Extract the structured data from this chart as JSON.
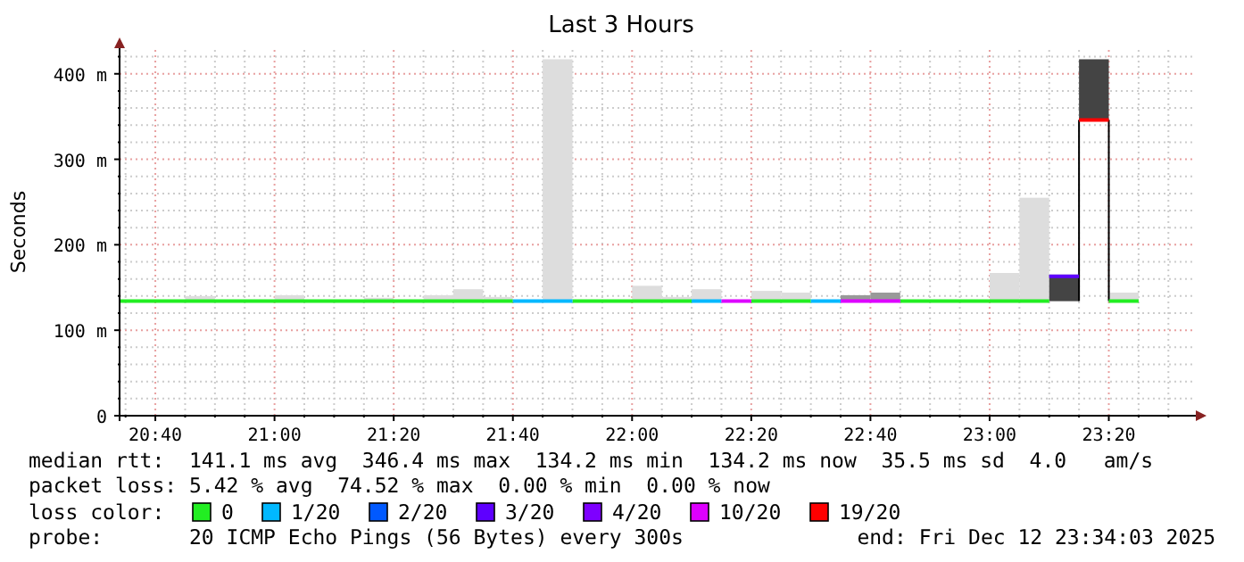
{
  "chart_data": {
    "type": "line",
    "title": "Last 3 Hours",
    "ylabel": "Seconds",
    "xlim": [
      "2025-12-12T20:34",
      "2025-12-12T23:34"
    ],
    "xticks": [
      {
        "value": "2025-12-12T20:35",
        "label": null
      },
      {
        "value": "2025-12-12T20:40",
        "label": "20:40"
      },
      {
        "value": "2025-12-12T20:45",
        "label": null
      },
      {
        "value": "2025-12-12T20:50",
        "label": null
      },
      {
        "value": "2025-12-12T20:55",
        "label": null
      },
      {
        "value": "2025-12-12T21:00",
        "label": "21:00"
      },
      {
        "value": "2025-12-12T21:05",
        "label": null
      },
      {
        "value": "2025-12-12T21:10",
        "label": null
      },
      {
        "value": "2025-12-12T21:15",
        "label": null
      },
      {
        "value": "2025-12-12T21:20",
        "label": "21:20"
      },
      {
        "value": "2025-12-12T21:25",
        "label": null
      },
      {
        "value": "2025-12-12T21:30",
        "label": null
      },
      {
        "value": "2025-12-12T21:35",
        "label": null
      },
      {
        "value": "2025-12-12T21:40",
        "label": "21:40"
      },
      {
        "value": "2025-12-12T21:45",
        "label": null
      },
      {
        "value": "2025-12-12T21:50",
        "label": null
      },
      {
        "value": "2025-12-12T21:55",
        "label": null
      },
      {
        "value": "2025-12-12T22:00",
        "label": "22:00"
      },
      {
        "value": "2025-12-12T22:05",
        "label": null
      },
      {
        "value": "2025-12-12T22:10",
        "label": null
      },
      {
        "value": "2025-12-12T22:15",
        "label": null
      },
      {
        "value": "2025-12-12T22:20",
        "label": "22:20"
      },
      {
        "value": "2025-12-12T22:25",
        "label": null
      },
      {
        "value": "2025-12-12T22:30",
        "label": null
      },
      {
        "value": "2025-12-12T22:35",
        "label": null
      },
      {
        "value": "2025-12-12T22:40",
        "label": "22:40"
      },
      {
        "value": "2025-12-12T22:45",
        "label": null
      },
      {
        "value": "2025-12-12T22:50",
        "label": null
      },
      {
        "value": "2025-12-12T22:55",
        "label": null
      },
      {
        "value": "2025-12-12T23:00",
        "label": "23:00"
      },
      {
        "value": "2025-12-12T23:05",
        "label": null
      },
      {
        "value": "2025-12-12T23:10",
        "label": null
      },
      {
        "value": "2025-12-12T23:15",
        "label": null
      },
      {
        "value": "2025-12-12T23:20",
        "label": "23:20"
      },
      {
        "value": "2025-12-12T23:25",
        "label": null
      },
      {
        "value": "2025-12-12T23:30",
        "label": null
      }
    ],
    "ylim": [
      0,
      430
    ],
    "yticks": [
      {
        "value": 0,
        "label": "0"
      },
      {
        "value": 20,
        "label": null
      },
      {
        "value": 40,
        "label": null
      },
      {
        "value": 60,
        "label": null
      },
      {
        "value": 80,
        "label": null
      },
      {
        "value": 100,
        "label": "100 m"
      },
      {
        "value": 120,
        "label": null
      },
      {
        "value": 140,
        "label": null
      },
      {
        "value": 160,
        "label": null
      },
      {
        "value": 180,
        "label": null
      },
      {
        "value": 200,
        "label": "200 m"
      },
      {
        "value": 220,
        "label": null
      },
      {
        "value": 240,
        "label": null
      },
      {
        "value": 260,
        "label": null
      },
      {
        "value": 280,
        "label": null
      },
      {
        "value": 300,
        "label": "300 m"
      },
      {
        "value": 320,
        "label": null
      },
      {
        "value": 340,
        "label": null
      },
      {
        "value": 360,
        "label": null
      },
      {
        "value": 380,
        "label": null
      },
      {
        "value": 400,
        "label": "400 m"
      },
      {
        "value": 420,
        "label": null
      }
    ],
    "grid": true,
    "legend": "bottom",
    "legend_title": "loss color:",
    "annotations": [
      "median rtt:  141.1 ms avg  346.4 ms max  134.2 ms min  134.2 ms now  35.5 ms sd  4.0   am/s",
      "packet loss: 5.42 % avg  74.52 % max  0.00 % min  0.00 % now",
      "probe:       20 ICMP Echo Pings (56 Bytes) every 300s",
      "end: Fri Dec 12 23:34:03 2025"
    ],
    "series": [
      {
        "type": "bar",
        "x": [
          "2025-12-12T20:47:30",
          "2025-12-12T21:02:30",
          "2025-12-12T21:17:30",
          "2025-12-12T21:27:30",
          "2025-12-12T21:32:30",
          "2025-12-12T21:37:30",
          "2025-12-12T21:47:30",
          "2025-12-12T22:02:30",
          "2025-12-12T22:07:30",
          "2025-12-12T22:12:30",
          "2025-12-12T22:22:30",
          "2025-12-12T22:27:30",
          "2025-12-12T22:37:30",
          "2025-12-12T22:42:30",
          "2025-12-12T23:02:30",
          "2025-12-12T23:07:30",
          "2025-12-12T23:12:30",
          "2025-12-12T23:17:30",
          "2025-12-12T23:22:30"
        ],
        "colors": [
          "#dddddd",
          "#dddddd",
          "#dddddd",
          "#dddddd",
          "#dddddd",
          "#dddddd",
          "#dddddd",
          "#dddddd",
          "#dddddd",
          "#dddddd",
          "#dddddd",
          "#dddddd",
          "#999999",
          "#999999",
          "#dddddd",
          "#dddddd",
          "#444444",
          "#444444",
          "#dddddd"
        ],
        "base": [
          134,
          134,
          134,
          134,
          134,
          134,
          134,
          134,
          134,
          134,
          134,
          134,
          134,
          134,
          134,
          134,
          134,
          346,
          134
        ],
        "values": [
          6,
          7,
          4,
          7,
          14,
          5,
          283,
          18,
          5,
          14,
          12,
          10,
          7,
          10,
          33,
          121,
          31,
          71,
          10
        ]
      },
      {
        "color": "#000000",
        "x": [
          "2025-12-12T23:15",
          "2025-12-12T23:15",
          null,
          "2025-12-12T23:20",
          "2025-12-12T23:20"
        ],
        "values": [
          134,
          346,
          null,
          346,
          134
        ]
      },
      {
        "name": "0",
        "color": "#22ee22",
        "x": [
          "2025-12-12T20:34",
          "2025-12-12T21:40",
          null,
          "2025-12-12T21:50",
          "2025-12-12T22:10",
          null,
          "2025-12-12T22:20",
          "2025-12-12T22:30",
          null,
          "2025-12-12T22:45",
          "2025-12-12T23:10",
          null,
          "2025-12-12T23:20",
          "2025-12-12T23:25"
        ],
        "values": [
          134,
          134,
          null,
          134,
          134,
          null,
          134,
          134,
          null,
          134,
          134,
          null,
          134,
          134
        ]
      },
      {
        "name": "1/20",
        "color": "#00b8ff",
        "x": [
          "2025-12-12T21:40",
          "2025-12-12T21:50",
          null,
          "2025-12-12T22:10",
          "2025-12-12T22:15",
          null,
          "2025-12-12T22:30",
          "2025-12-12T22:35"
        ],
        "values": [
          134,
          134,
          null,
          134,
          134,
          null,
          134,
          134
        ]
      },
      {
        "name": "2/20",
        "color": "#0059ff"
      },
      {
        "name": "3/20",
        "color": "#5e00ff",
        "x": [
          "2025-12-12T23:10",
          "2025-12-12T23:15"
        ],
        "values": [
          163,
          163
        ]
      },
      {
        "name": "4/20",
        "color": "#7e00ff"
      },
      {
        "name": "10/20",
        "color": "#dd00ff",
        "x": [
          "2025-12-12T22:15",
          "2025-12-12T22:20",
          null,
          "2025-12-12T22:35",
          "2025-12-12T22:45"
        ],
        "values": [
          134,
          134,
          null,
          134,
          134
        ]
      },
      {
        "name": "19/20",
        "color": "#ff0000",
        "x": [
          "2025-12-12T23:15",
          "2025-12-12T23:20"
        ],
        "values": [
          346,
          346
        ]
      }
    ]
  }
}
